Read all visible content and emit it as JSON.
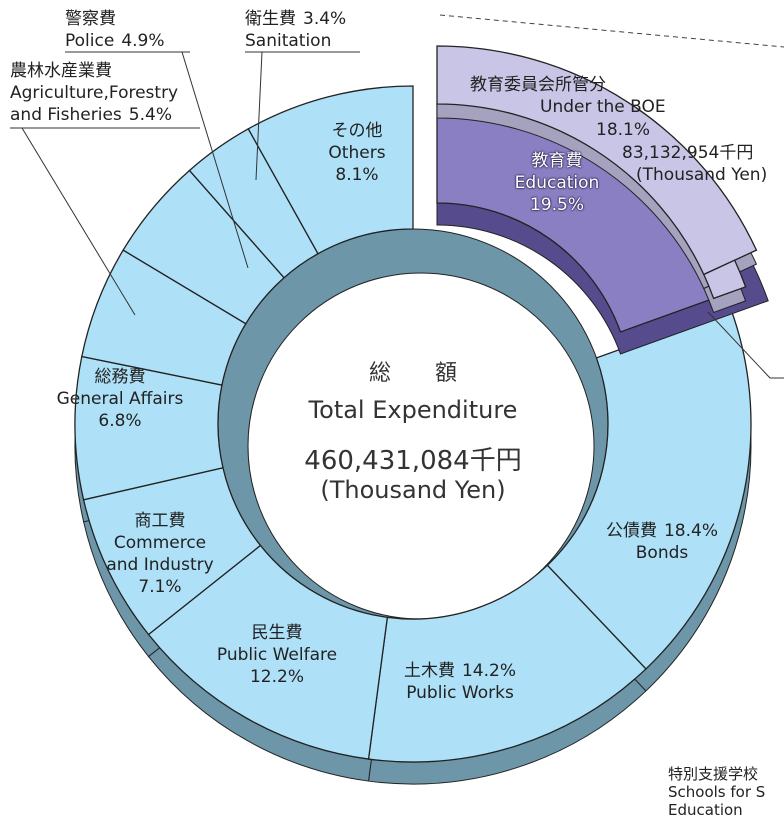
{
  "chart_data": {
    "type": "pie",
    "donut": true,
    "center_title": "総　　額",
    "center_title_en": "Total Expenditure",
    "center_amount": "460,431,084千円",
    "center_unit": "(Thousand Yen)",
    "categories_jp": [
      "教育費",
      "公債費",
      "土木費",
      "民生費",
      "商工費",
      "総務費",
      "農林水産業費",
      "警察費",
      "衛生費",
      "その他"
    ],
    "categories": [
      "Education",
      "Bonds",
      "Public Works",
      "Public Welfare",
      "Commerce and Industry",
      "General Affairs",
      "Agriculture,Forestry and Fisheries",
      "Police",
      "Sanitation",
      "Others"
    ],
    "values": [
      19.5,
      18.4,
      14.2,
      12.2,
      7.1,
      6.8,
      5.4,
      4.9,
      3.4,
      8.1
    ],
    "value_labels": [
      "19.5%",
      "18.4%",
      "14.2%",
      "12.2%",
      "7.1%",
      "6.8%",
      "5.4%",
      "4.9%",
      "3.4%",
      "8.1%"
    ],
    "color": "#aee0f7",
    "exploded_color": "#8a7fc2",
    "exploded": 0,
    "breakdown": {
      "categories_jp": [
        "教育委員会所管分",
        "特別支援学校"
      ],
      "categories": [
        "Under the BOE",
        "Schools for S"
      ],
      "category_line2": "Education",
      "values": [
        18.1,
        1.4
      ],
      "value_label": "18.1%",
      "amount": "83,132,954千円",
      "unit": "(Thousand Yen)",
      "color": "#c9c5e6"
    }
  }
}
